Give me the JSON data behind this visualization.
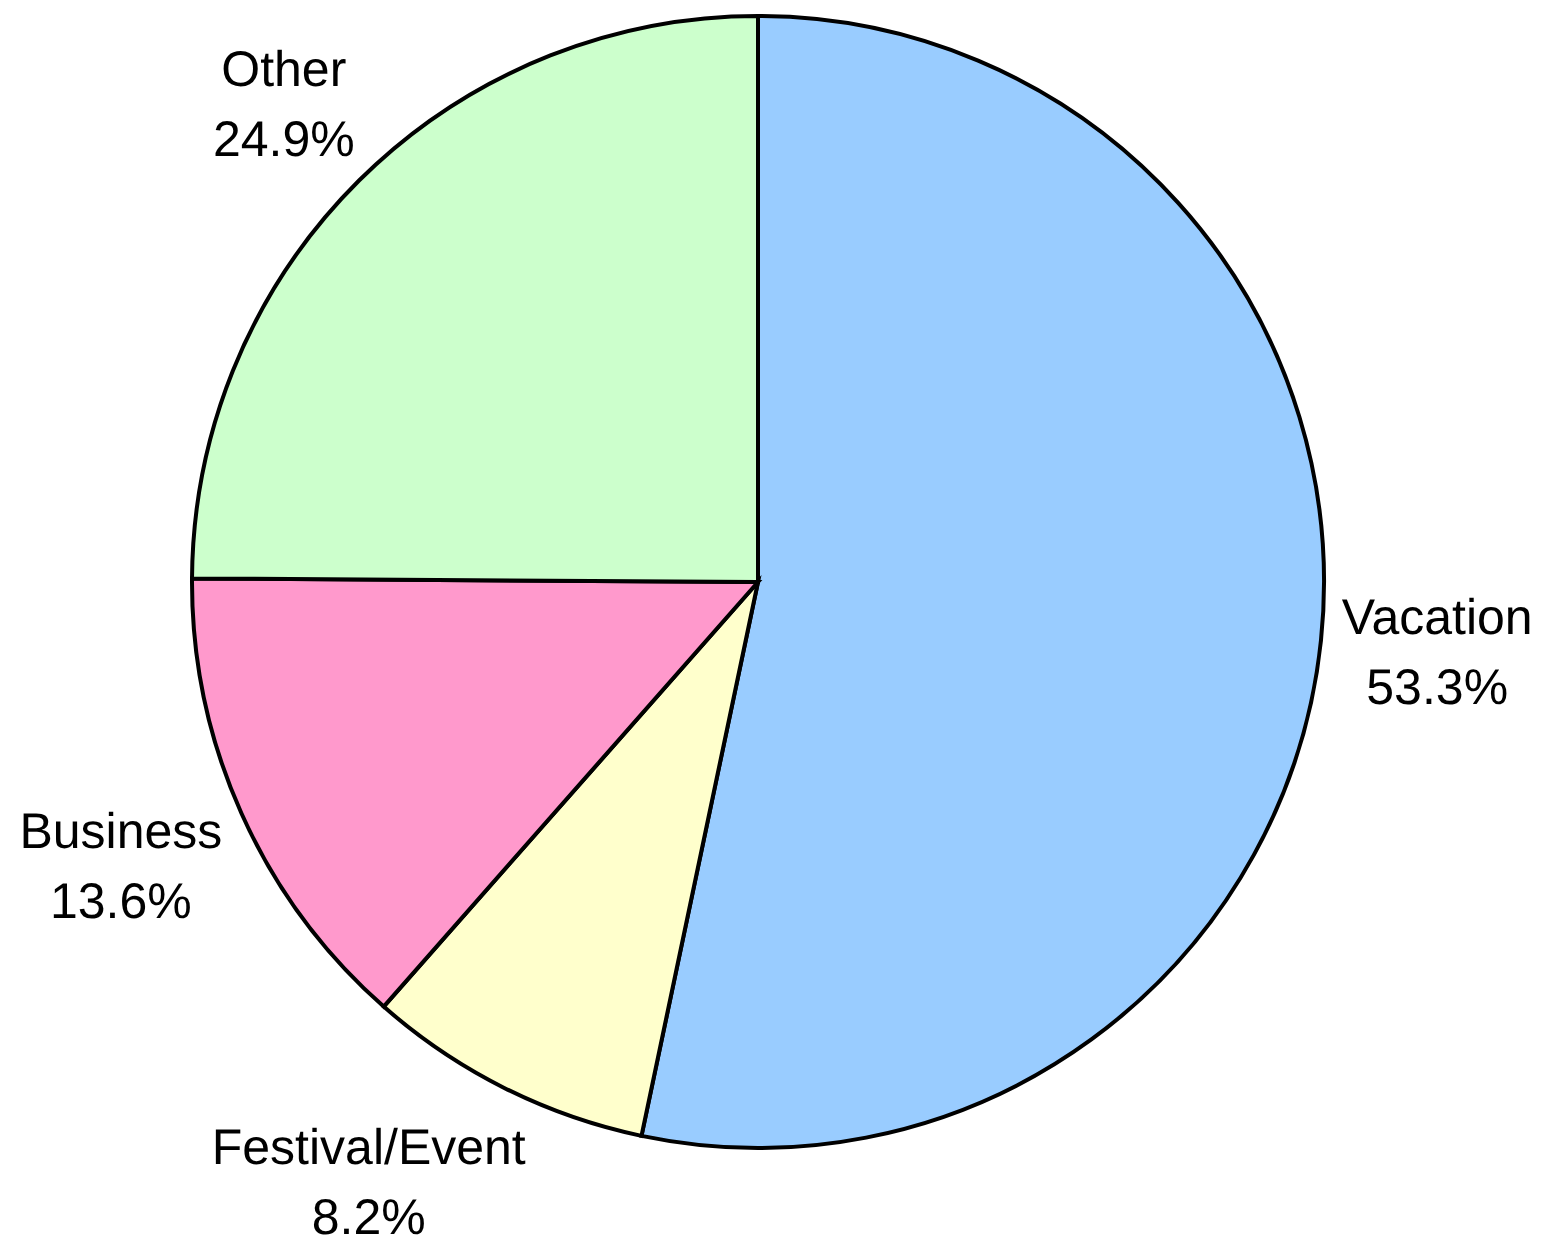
{
  "chart_data": {
    "type": "pie",
    "categories": [
      "Vacation",
      "Festival/Event",
      "Business",
      "Other"
    ],
    "values": [
      53.3,
      8.2,
      13.6,
      24.9
    ],
    "colors": [
      "#99ccff",
      "#ffffcc",
      "#ff99cc",
      "#ccffcc"
    ],
    "value_labels": [
      "53.3%",
      "8.2%",
      "13.6%",
      "24.9%"
    ]
  }
}
